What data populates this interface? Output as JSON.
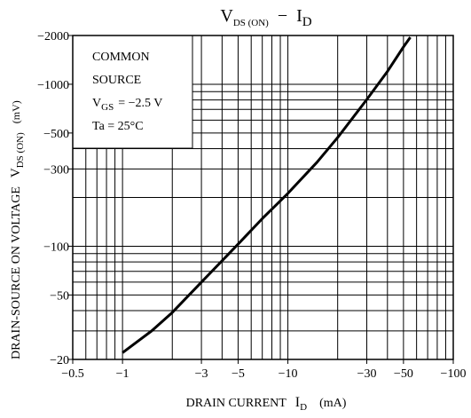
{
  "chart_data": {
    "type": "line",
    "title": {
      "v": "V",
      "v_sub": "DS (ON)",
      "sep": "−",
      "i": "I",
      "i_sub": "D"
    },
    "y_label": {
      "text": "DRAIN-SOURCE ON VOLTAGE",
      "v": "V",
      "v_sub": "DS (ON)",
      "unit": "(mV)"
    },
    "x_label": {
      "text": "DRAIN CURRENT",
      "i": "I",
      "i_sub": "D",
      "unit": "(mA)"
    },
    "annotation": {
      "line1": "COMMON",
      "line2": "SOURCE",
      "vgs": "V",
      "vgs_sub": "GS",
      "vgs_value": "= −2.5 V",
      "ta": "Ta = 25°C"
    },
    "log_x": true,
    "log_y": true,
    "grid": true,
    "xlim": [
      -0.5,
      -100
    ],
    "ylim": [
      -20,
      -2000
    ],
    "xticks": [
      {
        "value": -0.5,
        "label": "−0.5"
      },
      {
        "value": -1,
        "label": "−1"
      },
      {
        "value": -3,
        "label": "−3"
      },
      {
        "value": -5,
        "label": "−5"
      },
      {
        "value": -10,
        "label": "−10"
      },
      {
        "value": -30,
        "label": "−30"
      },
      {
        "value": -50,
        "label": "−50"
      },
      {
        "value": -100,
        "label": "−100"
      }
    ],
    "yticks": [
      {
        "value": -20,
        "label": "−20"
      },
      {
        "value": -50,
        "label": "−50"
      },
      {
        "value": -100,
        "label": "−100"
      },
      {
        "value": -300,
        "label": "−300"
      },
      {
        "value": -500,
        "label": "−500"
      },
      {
        "value": -1000,
        "label": "−1000"
      },
      {
        "value": -2000,
        "label": "−2000"
      }
    ],
    "xgrid": [
      -0.6,
      -0.7,
      -0.8,
      -0.9,
      -1,
      -2,
      -3,
      -4,
      -5,
      -6,
      -7,
      -8,
      -9,
      -10,
      -20,
      -30,
      -40,
      -50,
      -60,
      -70,
      -80,
      -90
    ],
    "ygrid": [
      -30,
      -40,
      -50,
      -60,
      -70,
      -80,
      -90,
      -100,
      -200,
      -300,
      -400,
      -500,
      -600,
      -700,
      -800,
      -900,
      -1000
    ],
    "series": [
      {
        "color": "#000000",
        "x": [
          -1,
          -1.5,
          -2,
          -3,
          -5,
          -7,
          -10,
          -15,
          -20,
          -30,
          -40,
          -50,
          -55
        ],
        "values": [
          -22,
          -30,
          -39,
          -60,
          -103,
          -148,
          -212,
          -330,
          -469,
          -805,
          -1200,
          -1700,
          -1950
        ]
      }
    ]
  }
}
